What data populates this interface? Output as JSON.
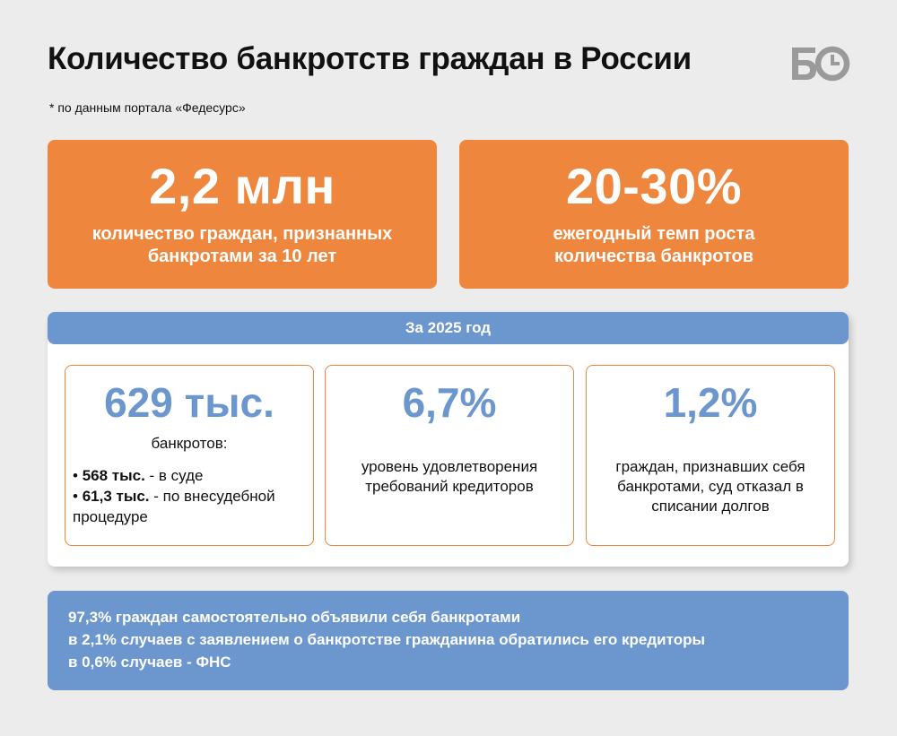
{
  "header": {
    "title": "Количество банкротств граждан в России",
    "footnote": "* по данным портала «Федесурс»",
    "logo_text": "БО"
  },
  "colors": {
    "orange": "#ee863d",
    "blue": "#6c97ce",
    "background": "#ececec"
  },
  "cards": [
    {
      "value": "2,2 млн",
      "caption": "количество граждан, признанных банкротами за 10 лет"
    },
    {
      "value": "20-30%",
      "caption": "ежегодный темп роста количества банкротов"
    }
  ],
  "panel": {
    "header": "За 2025 год",
    "stats": [
      {
        "value": "629 тыс.",
        "caption": "банкротов:",
        "items": [
          {
            "bold": "568 тыс.",
            "text": " - в суде"
          },
          {
            "bold": "61,3 тыс.",
            "text": " - по внесудебной процедуре"
          }
        ]
      },
      {
        "value": "6,7%",
        "caption": "уровень удовлетворения требований кредиторов"
      },
      {
        "value": "1,2%",
        "caption": "граждан, признавших себя банкротами, суд отказал в списании долгов"
      }
    ]
  },
  "bottom": {
    "lines": [
      "97,3% граждан самостоятельно объявили себя банкротами",
      "в 2,1% случаев с заявлением о банкротстве гражданина обратились его кредиторы",
      "в 0,6% случаев - ФНС"
    ]
  }
}
